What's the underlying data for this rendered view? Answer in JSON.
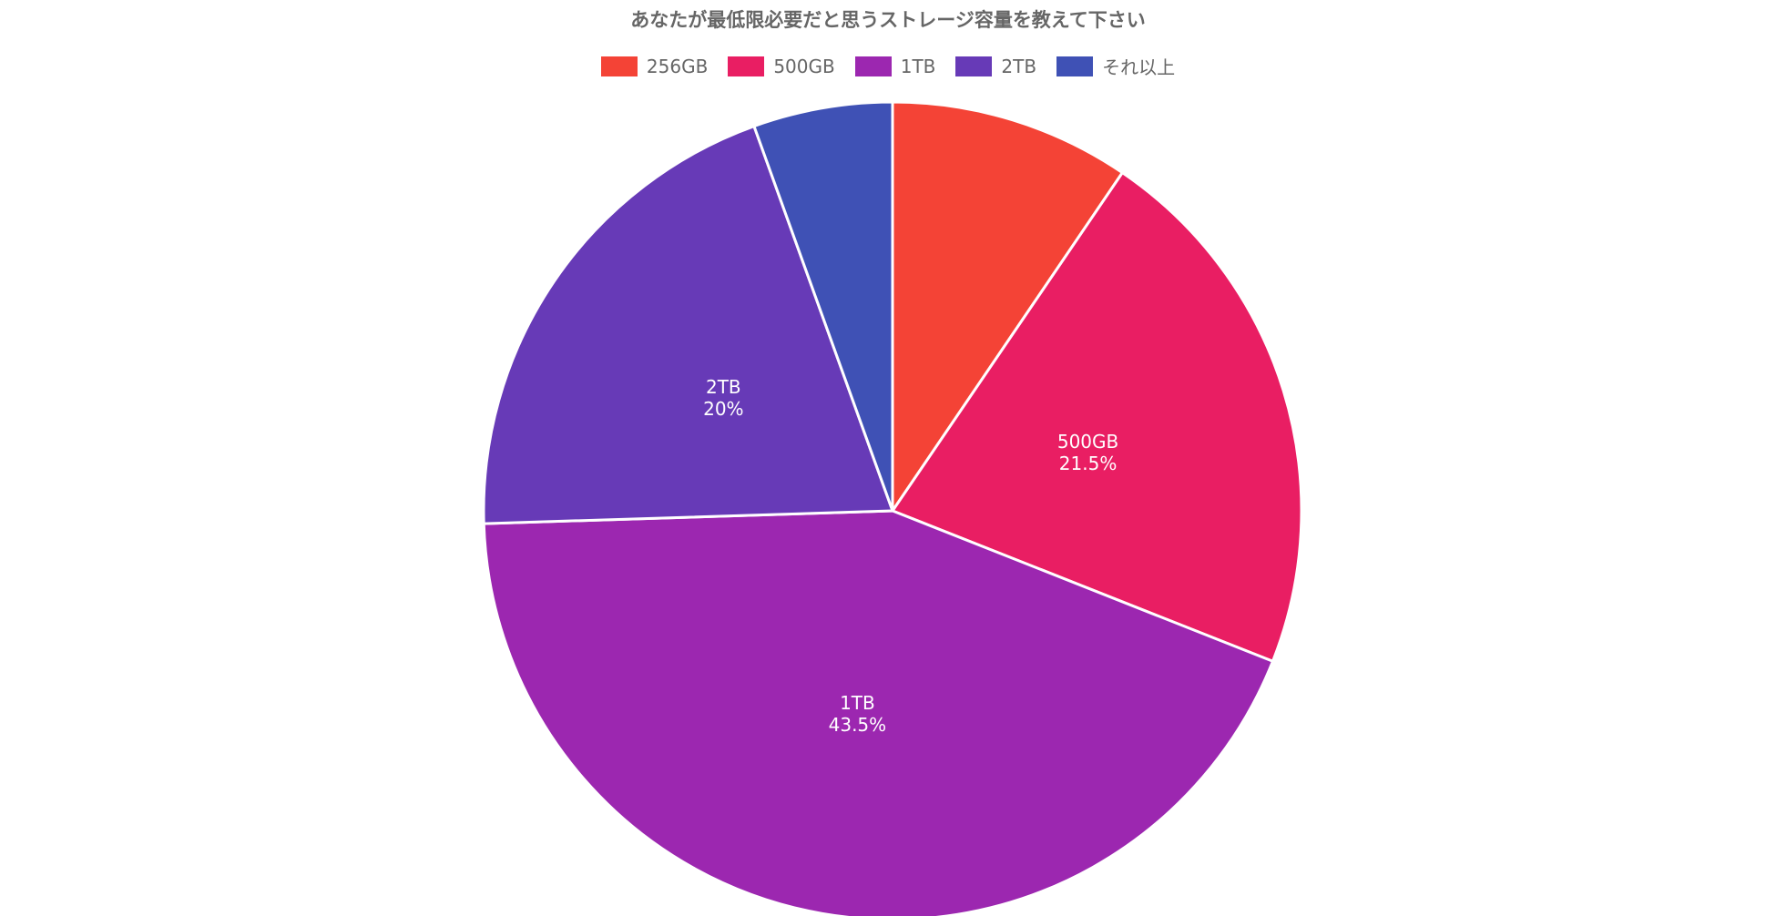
{
  "chart_data": {
    "type": "pie",
    "title": "あなたが最低限必要だと思うストレージ容量を教えて下さい",
    "legend_position": "top",
    "slices": [
      {
        "label": "256GB",
        "value": 9.5,
        "color": "#f44336",
        "show_label": false,
        "value_text": ""
      },
      {
        "label": "500GB",
        "value": 21.5,
        "color": "#e91e63",
        "show_label": true,
        "value_text": "21.5%"
      },
      {
        "label": "1TB",
        "value": 43.5,
        "color": "#9c27b0",
        "show_label": true,
        "value_text": "43.5%"
      },
      {
        "label": "2TB",
        "value": 20,
        "color": "#673ab7",
        "show_label": true,
        "value_text": "20%"
      },
      {
        "label": "それ以上",
        "value": 5.5,
        "color": "#3f51b5",
        "show_label": false,
        "value_text": ""
      }
    ]
  }
}
